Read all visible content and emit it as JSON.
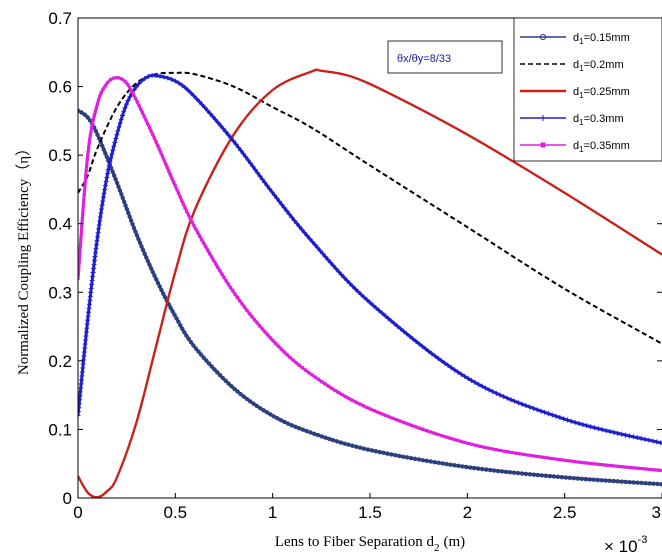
{
  "chart_data": {
    "type": "line",
    "xlabel": "Lens to Fiber Separation d",
    "xlabel_sub": "2",
    "xlabel_unit": "(m)",
    "ylabel": "Normalized Coupling Efficiency（η）",
    "x_exponent_label": "× 10",
    "x_exponent_power": "-3",
    "xlim": [
      0,
      3
    ],
    "ylim": [
      0,
      0.7
    ],
    "grid": false,
    "legend_position": "top-right",
    "x_tick_labels": [
      "0",
      "0.5",
      "1",
      "1.5",
      "2",
      "2.5",
      "3"
    ],
    "y_tick_labels": [
      "0",
      "0.1",
      "0.2",
      "0.3",
      "0.4",
      "0.5",
      "0.6",
      "0.7"
    ],
    "annotation": "θx/θy=8/33",
    "series": [
      {
        "name": "d1=0.15mm",
        "label_main": "d",
        "label_sub": "1",
        "label_rest": "=0.15mm",
        "color": "#2b3f7e",
        "style": "line-circle",
        "x": [
          0,
          0.05,
          0.1,
          0.2,
          0.3,
          0.4,
          0.5,
          0.6,
          0.8,
          1.0,
          1.2,
          1.5,
          2.0,
          2.5,
          3.0
        ],
        "y": [
          0.565,
          0.555,
          0.53,
          0.46,
          0.385,
          0.32,
          0.265,
          0.22,
          0.16,
          0.12,
          0.095,
          0.07,
          0.045,
          0.03,
          0.02
        ]
      },
      {
        "name": "d1=0.2mm",
        "label_main": "d",
        "label_sub": "1",
        "label_rest": "=0.2mm",
        "color": "#000000",
        "style": "dashed",
        "x": [
          0,
          0.05,
          0.1,
          0.2,
          0.3,
          0.4,
          0.5,
          0.6,
          0.8,
          1.0,
          1.2,
          1.5,
          2.0,
          2.5,
          3.0
        ],
        "y": [
          0.445,
          0.47,
          0.51,
          0.57,
          0.605,
          0.618,
          0.62,
          0.618,
          0.6,
          0.57,
          0.54,
          0.485,
          0.395,
          0.305,
          0.225
        ]
      },
      {
        "name": "d1=0.25mm",
        "label_main": "d",
        "label_sub": "1",
        "label_rest": "=0.25mm",
        "color": "#c8221a",
        "style": "solid",
        "x": [
          0,
          0.05,
          0.1,
          0.15,
          0.2,
          0.3,
          0.4,
          0.5,
          0.6,
          0.8,
          1.0,
          1.2,
          1.25,
          1.4,
          1.6,
          2.0,
          2.5,
          3.0
        ],
        "y": [
          0.032,
          0.008,
          0.001,
          0.01,
          0.03,
          0.11,
          0.22,
          0.33,
          0.42,
          0.53,
          0.595,
          0.622,
          0.623,
          0.615,
          0.59,
          0.53,
          0.445,
          0.355
        ]
      },
      {
        "name": "d1=0.3mm",
        "label_main": "d",
        "label_sub": "1",
        "label_rest": "=0.3mm",
        "color": "#1f1fcc",
        "style": "line-plus",
        "x": [
          0,
          0.05,
          0.1,
          0.15,
          0.2,
          0.25,
          0.3,
          0.35,
          0.4,
          0.5,
          0.6,
          0.8,
          1.0,
          1.2,
          1.5,
          2.0,
          2.5,
          3.0
        ],
        "y": [
          0.12,
          0.26,
          0.38,
          0.47,
          0.53,
          0.575,
          0.6,
          0.613,
          0.616,
          0.608,
          0.585,
          0.52,
          0.445,
          0.375,
          0.285,
          0.175,
          0.115,
          0.08
        ]
      },
      {
        "name": "d1=0.35mm",
        "label_main": "d",
        "label_sub": "1",
        "label_rest": "=0.35mm",
        "color": "#e020e0",
        "style": "line-square",
        "x": [
          0,
          0.05,
          0.1,
          0.15,
          0.2,
          0.25,
          0.3,
          0.4,
          0.5,
          0.6,
          0.8,
          1.0,
          1.2,
          1.5,
          2.0,
          2.5,
          3.0
        ],
        "y": [
          0.32,
          0.5,
          0.575,
          0.605,
          0.613,
          0.605,
          0.58,
          0.52,
          0.455,
          0.395,
          0.3,
          0.23,
          0.18,
          0.13,
          0.08,
          0.055,
          0.04
        ]
      }
    ]
  }
}
